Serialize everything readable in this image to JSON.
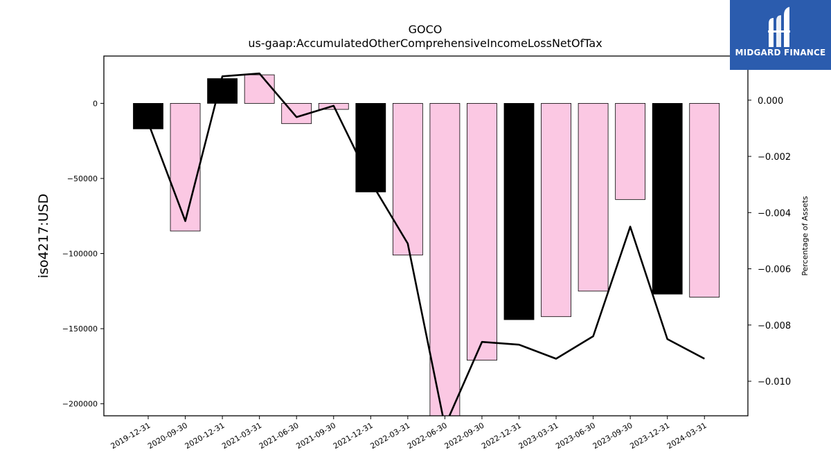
{
  "brand": {
    "name": "MIDGARD FINANCE"
  },
  "chart_data": {
    "type": "bar",
    "title": "GOCO",
    "subtitle": "us-gaap:AccumulatedOtherComprehensiveIncomeLossNetOfTax",
    "ylabel": "iso4217:USD",
    "y2label": "Percentage of Assets",
    "categories": [
      "2019-12-31",
      "2020-09-30",
      "2020-12-31",
      "2021-03-31",
      "2021-06-30",
      "2021-09-30",
      "2021-12-31",
      "2022-03-31",
      "2022-06-30",
      "2022-09-30",
      "2022-12-31",
      "2023-03-31",
      "2023-06-30",
      "2023-09-30",
      "2023-12-31",
      "2024-03-31"
    ],
    "series": [
      {
        "type": "bar",
        "axis": "left",
        "values": [
          -17000,
          -85000,
          16500,
          19000,
          -13500,
          -4000,
          -59000,
          -101000,
          -210000,
          -171000,
          -144000,
          -142000,
          -125000,
          -64000,
          -127000,
          -129000
        ],
        "colors": [
          "#000000",
          "#fbc8e3",
          "#000000",
          "#fbc8e3",
          "#fbc8e3",
          "#fbc8e3",
          "#000000",
          "#fbc8e3",
          "#fbc8e3",
          "#fbc8e3",
          "#000000",
          "#fbc8e3",
          "#fbc8e3",
          "#fbc8e3",
          "#000000",
          "#fbc8e3"
        ]
      },
      {
        "type": "line",
        "axis": "right",
        "color": "#000000",
        "values": [
          -0.0008,
          -0.0043,
          0.00085,
          0.00095,
          -0.0006,
          -0.0002,
          -0.0029,
          -0.0051,
          -0.0116,
          -0.0086,
          -0.0087,
          -0.0092,
          -0.0084,
          -0.0045,
          -0.0085,
          -0.0092
        ]
      }
    ],
    "yticks": [
      0,
      -50000,
      -100000,
      -150000,
      -200000
    ],
    "ytick_labels": [
      "0",
      "−50000",
      "−100000",
      "−150000",
      "−200000"
    ],
    "ylim": [
      -208000,
      31500
    ],
    "y2ticks": [
      0,
      -0.002,
      -0.004,
      -0.006,
      -0.008,
      -0.01
    ],
    "y2tick_labels": [
      "0.000",
      "−0.002",
      "−0.004",
      "−0.006",
      "−0.008",
      "−0.010"
    ],
    "y2lim": [
      -0.01123,
      0.00157
    ],
    "grid": false,
    "legend": "none"
  }
}
